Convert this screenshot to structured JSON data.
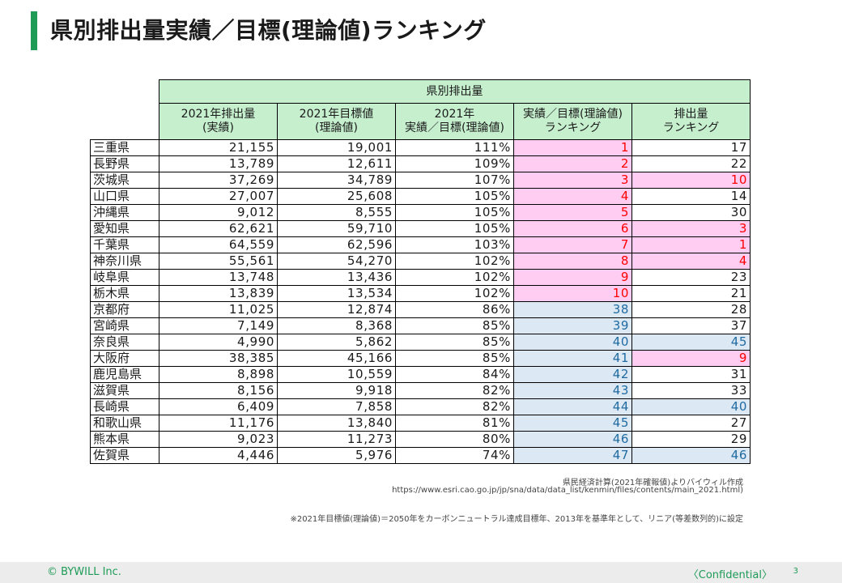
{
  "title": "県別排出量実績／目標(理論値)ランキング",
  "table": {
    "group_header": "県別排出量",
    "columns": [
      [
        "2021年排出量",
        "(実績)"
      ],
      [
        "2021年目標値",
        "(理論値)"
      ],
      [
        "2021年",
        "実績／目標(理論値)"
      ],
      [
        "実績／目標(理論値)",
        "ランキング"
      ],
      [
        "排出量",
        "ランキング"
      ]
    ],
    "rows": [
      {
        "pref": "三重県",
        "actual": "21,155",
        "target": "19,001",
        "ratio": "111%",
        "rank_ratio": "1",
        "rank_emission": "17",
        "ratio_hl": "pink",
        "emis_hl": ""
      },
      {
        "pref": "長野県",
        "actual": "13,789",
        "target": "12,611",
        "ratio": "109%",
        "rank_ratio": "2",
        "rank_emission": "22",
        "ratio_hl": "pink",
        "emis_hl": ""
      },
      {
        "pref": "茨城県",
        "actual": "37,269",
        "target": "34,789",
        "ratio": "107%",
        "rank_ratio": "3",
        "rank_emission": "10",
        "ratio_hl": "pink",
        "emis_hl": "pink"
      },
      {
        "pref": "山口県",
        "actual": "27,007",
        "target": "25,608",
        "ratio": "105%",
        "rank_ratio": "4",
        "rank_emission": "14",
        "ratio_hl": "pink",
        "emis_hl": ""
      },
      {
        "pref": "沖縄県",
        "actual": "9,012",
        "target": "8,555",
        "ratio": "105%",
        "rank_ratio": "5",
        "rank_emission": "30",
        "ratio_hl": "pink",
        "emis_hl": ""
      },
      {
        "pref": "愛知県",
        "actual": "62,621",
        "target": "59,710",
        "ratio": "105%",
        "rank_ratio": "6",
        "rank_emission": "3",
        "ratio_hl": "pink",
        "emis_hl": "pink"
      },
      {
        "pref": "千葉県",
        "actual": "64,559",
        "target": "62,596",
        "ratio": "103%",
        "rank_ratio": "7",
        "rank_emission": "1",
        "ratio_hl": "pink",
        "emis_hl": "pink"
      },
      {
        "pref": "神奈川県",
        "actual": "55,561",
        "target": "54,270",
        "ratio": "102%",
        "rank_ratio": "8",
        "rank_emission": "4",
        "ratio_hl": "pink",
        "emis_hl": "pink"
      },
      {
        "pref": "岐阜県",
        "actual": "13,748",
        "target": "13,436",
        "ratio": "102%",
        "rank_ratio": "9",
        "rank_emission": "23",
        "ratio_hl": "pink",
        "emis_hl": ""
      },
      {
        "pref": "栃木県",
        "actual": "13,839",
        "target": "13,534",
        "ratio": "102%",
        "rank_ratio": "10",
        "rank_emission": "21",
        "ratio_hl": "pink",
        "emis_hl": ""
      },
      {
        "pref": "京都府",
        "actual": "11,025",
        "target": "12,874",
        "ratio": "86%",
        "rank_ratio": "38",
        "rank_emission": "28",
        "ratio_hl": "blue",
        "emis_hl": ""
      },
      {
        "pref": "宮崎県",
        "actual": "7,149",
        "target": "8,368",
        "ratio": "85%",
        "rank_ratio": "39",
        "rank_emission": "37",
        "ratio_hl": "blue",
        "emis_hl": ""
      },
      {
        "pref": "奈良県",
        "actual": "4,990",
        "target": "5,862",
        "ratio": "85%",
        "rank_ratio": "40",
        "rank_emission": "45",
        "ratio_hl": "blue",
        "emis_hl": "blue"
      },
      {
        "pref": "大阪府",
        "actual": "38,385",
        "target": "45,166",
        "ratio": "85%",
        "rank_ratio": "41",
        "rank_emission": "9",
        "ratio_hl": "blue",
        "emis_hl": "pink"
      },
      {
        "pref": "鹿児島県",
        "actual": "8,898",
        "target": "10,559",
        "ratio": "84%",
        "rank_ratio": "42",
        "rank_emission": "31",
        "ratio_hl": "blue",
        "emis_hl": ""
      },
      {
        "pref": "滋賀県",
        "actual": "8,156",
        "target": "9,918",
        "ratio": "82%",
        "rank_ratio": "43",
        "rank_emission": "33",
        "ratio_hl": "blue",
        "emis_hl": ""
      },
      {
        "pref": "長崎県",
        "actual": "6,409",
        "target": "7,858",
        "ratio": "82%",
        "rank_ratio": "44",
        "rank_emission": "40",
        "ratio_hl": "blue",
        "emis_hl": "blue"
      },
      {
        "pref": "和歌山県",
        "actual": "11,176",
        "target": "13,840",
        "ratio": "81%",
        "rank_ratio": "45",
        "rank_emission": "27",
        "ratio_hl": "blue",
        "emis_hl": ""
      },
      {
        "pref": "熊本県",
        "actual": "9,023",
        "target": "11,273",
        "ratio": "80%",
        "rank_ratio": "46",
        "rank_emission": "29",
        "ratio_hl": "blue",
        "emis_hl": ""
      },
      {
        "pref": "佐賀県",
        "actual": "4,446",
        "target": "5,976",
        "ratio": "74%",
        "rank_ratio": "47",
        "rank_emission": "46",
        "ratio_hl": "blue",
        "emis_hl": "blue"
      }
    ]
  },
  "source_line1": "県民経済計算(2021年確報値)よりバイウィル作成",
  "source_line2": "https://www.esri.cao.go.jp/jp/sna/data/data_list/kenmin/files/contents/main_2021.html)",
  "note": "※2021年目標値(理論値)＝2050年をカーボンニュートラル達成目標年、2013年を基準年として、リニア(等差数列的)に設定",
  "footer": {
    "copyright": "© BYWILL Inc.",
    "confidential": "〈Confidential〉",
    "page": "3"
  },
  "colors": {
    "accent": "#1e9b57",
    "header_bg": "#c6efce",
    "pink_bg": "#ffccf2",
    "blue_bg": "#dce9f5",
    "red_text": "#ff0000",
    "blue_text": "#1f6aa0"
  }
}
